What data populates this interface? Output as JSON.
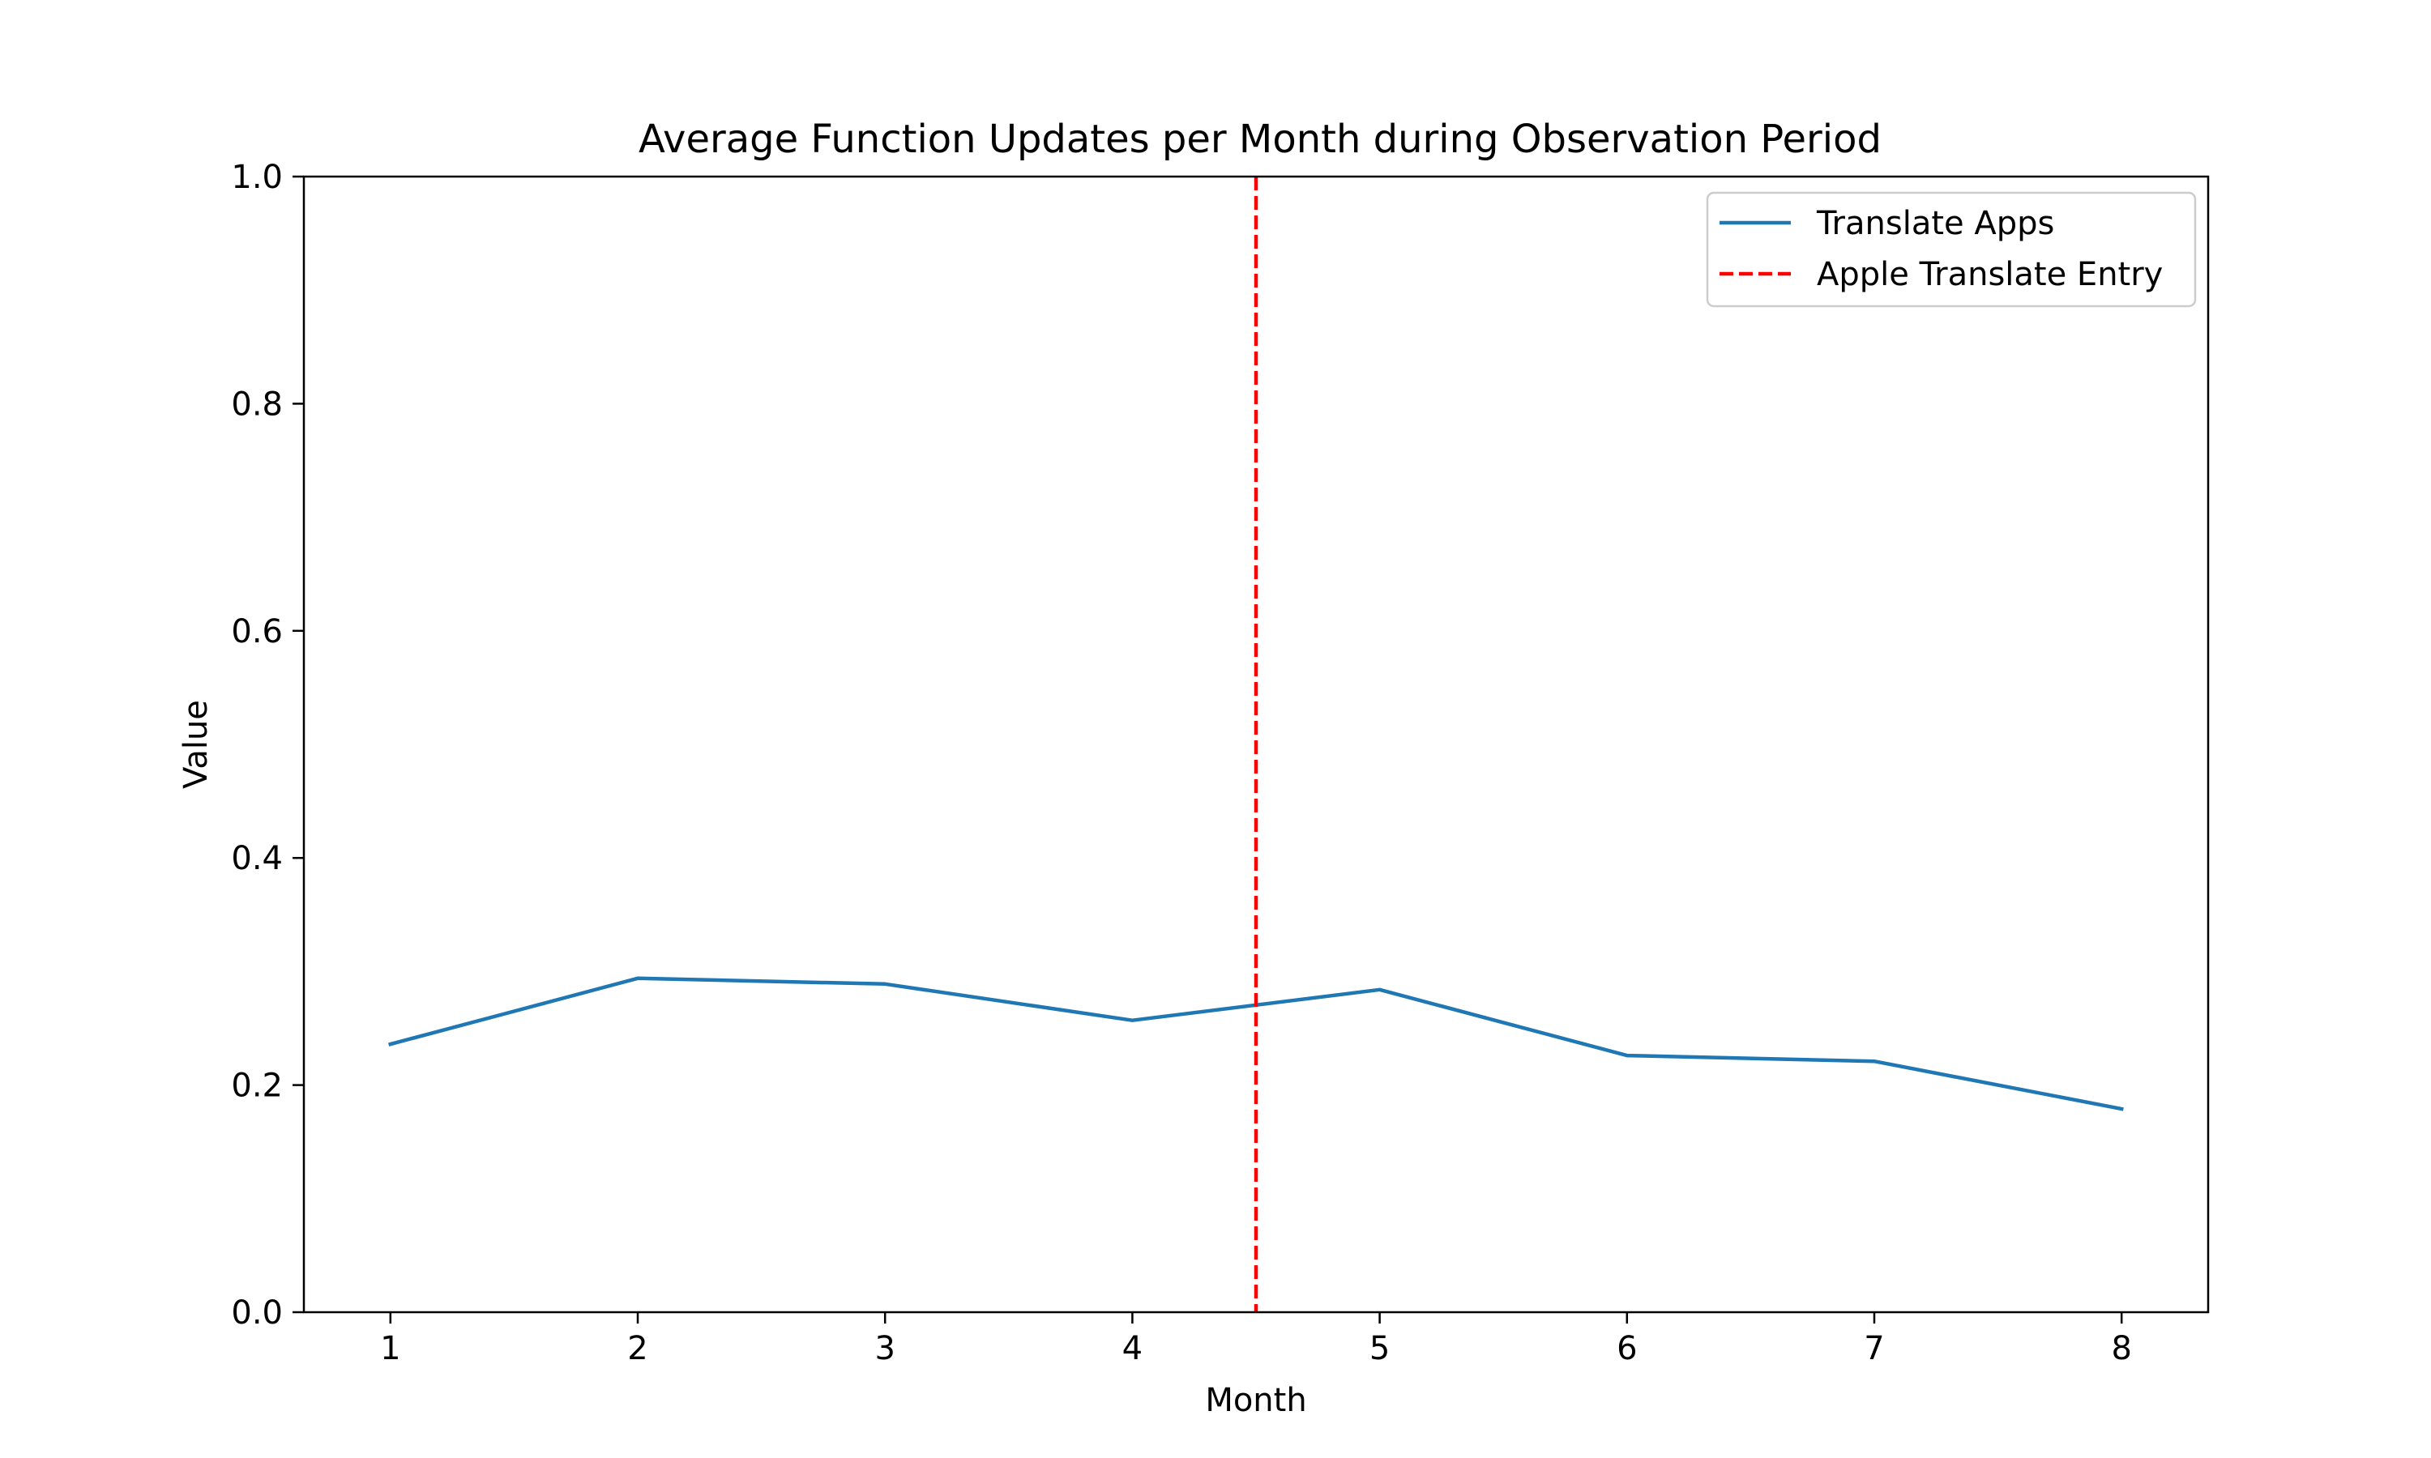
{
  "chart_data": {
    "type": "line",
    "title": "Average Function Updates per Month during Observation Period",
    "xlabel": "Month",
    "ylabel": "Value",
    "x": [
      1,
      2,
      3,
      4,
      5,
      6,
      7,
      8
    ],
    "xticks": [
      "1",
      "2",
      "3",
      "4",
      "5",
      "6",
      "7",
      "8"
    ],
    "xlim": [
      0.65,
      8.35
    ],
    "yticks": [
      "0.0",
      "0.2",
      "0.4",
      "0.6",
      "0.8",
      "1.0"
    ],
    "ylim": [
      0,
      1
    ],
    "grid": false,
    "legend_position": "top-right",
    "series": [
      {
        "name": "Translate Apps",
        "color": "#1f77b4",
        "style": "solid",
        "values": [
          0.236,
          0.294,
          0.289,
          0.257,
          0.284,
          0.226,
          0.221,
          0.179
        ]
      }
    ],
    "vlines": [
      {
        "name": "Apple Translate Entry",
        "x": 4.5,
        "color": "#ff0000",
        "style": "dashed"
      }
    ]
  }
}
